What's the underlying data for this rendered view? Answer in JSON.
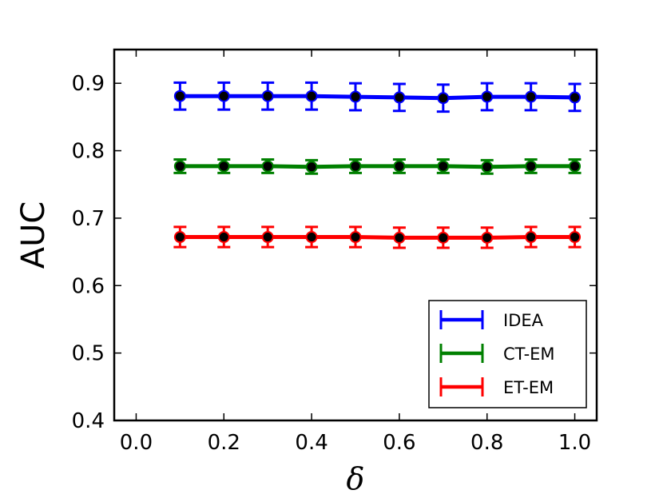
{
  "chart_data": {
    "type": "line",
    "xlabel": "δ",
    "ylabel": "AUC",
    "xlim": [
      -0.05,
      1.05
    ],
    "ylim": [
      0.4,
      0.95
    ],
    "xticks": [
      "0.0",
      "0.2",
      "0.4",
      "0.6",
      "0.8",
      "1.0"
    ],
    "yticks": [
      "0.4",
      "0.5",
      "0.6",
      "0.7",
      "0.8",
      "0.9"
    ],
    "legend_position": "lower-right",
    "grid": false,
    "x": [
      0.1,
      0.2,
      0.3,
      0.4,
      0.5,
      0.6,
      0.7,
      0.8,
      0.9,
      1.0
    ],
    "series": [
      {
        "name": "IDEA",
        "color": "#0000ff",
        "values": [
          0.881,
          0.881,
          0.881,
          0.881,
          0.88,
          0.879,
          0.878,
          0.88,
          0.88,
          0.879
        ],
        "errors": [
          0.02,
          0.02,
          0.02,
          0.02,
          0.02,
          0.02,
          0.02,
          0.02,
          0.02,
          0.02
        ]
      },
      {
        "name": "CT-EM",
        "color": "#008000",
        "values": [
          0.777,
          0.777,
          0.777,
          0.776,
          0.777,
          0.777,
          0.777,
          0.776,
          0.777,
          0.777
        ],
        "errors": [
          0.01,
          0.01,
          0.01,
          0.01,
          0.01,
          0.01,
          0.01,
          0.01,
          0.01,
          0.01
        ]
      },
      {
        "name": "ET-EM",
        "color": "#ff0000",
        "values": [
          0.672,
          0.672,
          0.672,
          0.672,
          0.672,
          0.671,
          0.671,
          0.671,
          0.672,
          0.672
        ],
        "errors": [
          0.015,
          0.015,
          0.015,
          0.015,
          0.015,
          0.015,
          0.015,
          0.015,
          0.015,
          0.015
        ]
      }
    ]
  }
}
